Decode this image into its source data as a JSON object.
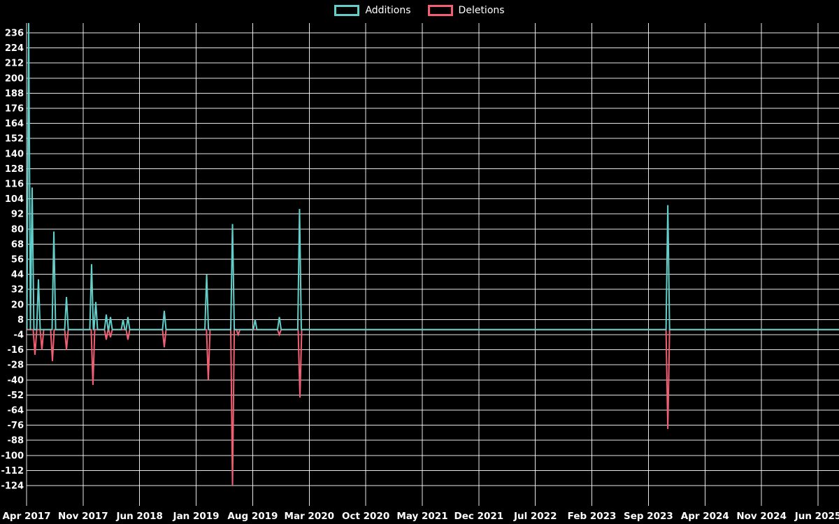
{
  "legend": {
    "additions": "Additions",
    "deletions": "Deletions"
  },
  "colors": {
    "additions": "#63cfca",
    "deletions": "#f25f72",
    "background": "#000000",
    "grid": "#ffffff",
    "text": "#ffffff"
  },
  "chart_data": {
    "type": "line",
    "title": "",
    "x_axis": {
      "tick_labels": [
        "Apr 2017",
        "Nov 2017",
        "Jun 2018",
        "Jan 2019",
        "Aug 2019",
        "Mar 2020",
        "Oct 2020",
        "May 2021",
        "Dec 2021",
        "Jul 2022",
        "Feb 2023",
        "Sep 2023",
        "Apr 2024",
        "Nov 2024",
        "Jun 2025"
      ],
      "months_per_tick": 7,
      "range_months": [
        0,
        98
      ]
    },
    "y_axis": {
      "min": -124,
      "max": 236,
      "tick_step": 12
    },
    "series": [
      {
        "name": "Additions",
        "baseline": 0,
        "spikes_month_value": [
          [
            0.26,
            245
          ],
          [
            0.69,
            113
          ],
          [
            1.47,
            40
          ],
          [
            3.38,
            78
          ],
          [
            4.94,
            26
          ],
          [
            8.05,
            52
          ],
          [
            8.57,
            22
          ],
          [
            9.87,
            12
          ],
          [
            10.39,
            10
          ],
          [
            11.95,
            8
          ],
          [
            12.55,
            10
          ],
          [
            17.05,
            15
          ],
          [
            22.3,
            44
          ],
          [
            25.5,
            84
          ],
          [
            28.3,
            8
          ],
          [
            31.3,
            10
          ],
          [
            33.8,
            96
          ],
          [
            79.4,
            99
          ]
        ]
      },
      {
        "name": "Deletions",
        "baseline": 0,
        "spikes_month_value": [
          [
            1.04,
            -20
          ],
          [
            1.9,
            -16
          ],
          [
            3.2,
            -25
          ],
          [
            4.94,
            -16
          ],
          [
            8.22,
            -44
          ],
          [
            9.87,
            -8
          ],
          [
            10.39,
            -6
          ],
          [
            12.55,
            -8
          ],
          [
            17.05,
            -14
          ],
          [
            22.5,
            -40
          ],
          [
            25.5,
            -124
          ],
          [
            26.2,
            -4
          ],
          [
            31.3,
            -4
          ],
          [
            33.85,
            -54
          ],
          [
            79.4,
            -79
          ]
        ]
      }
    ]
  }
}
